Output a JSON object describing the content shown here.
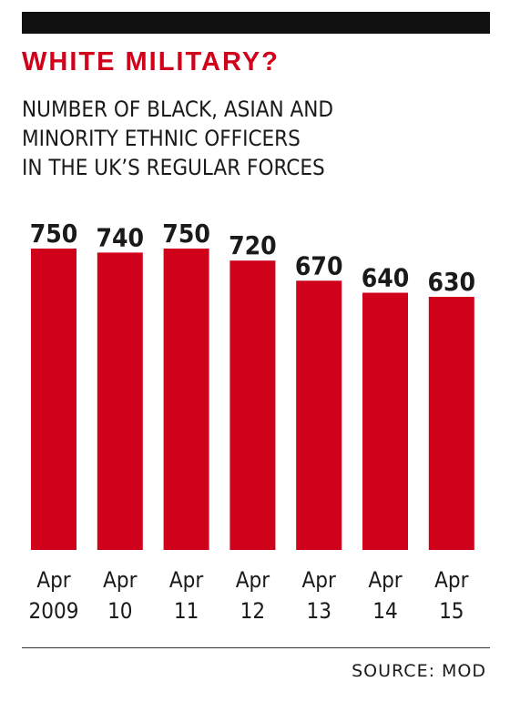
{
  "chart_data": {
    "type": "bar",
    "title": "WHITE MILITARY?",
    "subtitle_lines": [
      "NUMBER OF BLACK, ASIAN AND",
      "MINORITY ETHNIC OFFICERS",
      "IN THE UK’S REGULAR FORCES"
    ],
    "categories": [
      [
        "Apr",
        "2009"
      ],
      [
        "Apr",
        "10"
      ],
      [
        "Apr",
        "11"
      ],
      [
        "Apr",
        "12"
      ],
      [
        "Apr",
        "13"
      ],
      [
        "Apr",
        "14"
      ],
      [
        "Apr",
        "15"
      ]
    ],
    "values": [
      750,
      740,
      750,
      720,
      670,
      640,
      630
    ],
    "value_labels": [
      "750",
      "740",
      "750",
      "720",
      "670",
      "640",
      "630"
    ],
    "ylim": [
      0,
      750
    ],
    "grid": false,
    "legend": "none",
    "bar_color": "#d0021b",
    "source": "SOURCE: MOD"
  }
}
